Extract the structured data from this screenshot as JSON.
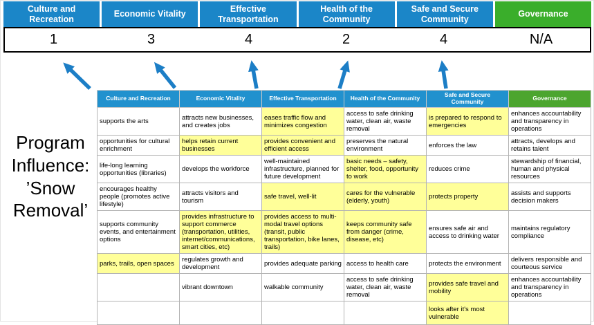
{
  "title": "Program Influence: ’Snow Removal’",
  "colors": {
    "banner_blue": "#1b86c8",
    "banner_green": "#3aae2b",
    "table_header_blue": "#2191ce",
    "table_header_green": "#4ca52f",
    "highlight_yellow": "#ffff99",
    "arrow_blue": "#1c7ec6",
    "score_border": "#000000"
  },
  "scoreboard": {
    "columns": [
      {
        "label": "Culture and Recreation",
        "score": "1",
        "color": "blue"
      },
      {
        "label": "Economic Vitality",
        "score": "3",
        "color": "blue"
      },
      {
        "label": "Effective Transportation",
        "score": "4",
        "color": "blue"
      },
      {
        "label": "Health of the Community",
        "score": "2",
        "color": "blue"
      },
      {
        "label": "Safe and Secure Community",
        "score": "4",
        "color": "blue"
      },
      {
        "label": "Governance",
        "score": "N/A",
        "color": "green"
      }
    ]
  },
  "matrix": {
    "headers": [
      {
        "label": "Culture and Recreation",
        "color": "blue"
      },
      {
        "label": "Economic Vitality",
        "color": "blue"
      },
      {
        "label": "Effective Transportation",
        "color": "blue"
      },
      {
        "label": "Health of the Community",
        "color": "blue"
      },
      {
        "label": "Safe and Secure Community",
        "color": "blue"
      },
      {
        "label": "Governance",
        "color": "green"
      }
    ],
    "rows": [
      [
        {
          "text": "supports the arts",
          "highlight": false
        },
        {
          "text": "attracts new businesses, and creates jobs",
          "highlight": false
        },
        {
          "text": "eases traffic flow and minimizes congestion",
          "highlight": true
        },
        {
          "text": "access to safe drinking water, clean air, waste removal",
          "highlight": false
        },
        {
          "text": "is prepared to respond to emergencies",
          "highlight": true
        },
        {
          "text": "enhances accountability and transparency in operations",
          "highlight": false
        }
      ],
      [
        {
          "text": "opportunities for cultural enrichment",
          "highlight": false
        },
        {
          "text": "helps retain current businesses",
          "highlight": true
        },
        {
          "text": "provides convenient and efficient access",
          "highlight": true
        },
        {
          "text": "preserves the natural environment",
          "highlight": false
        },
        {
          "text": "enforces the law",
          "highlight": false
        },
        {
          "text": "attracts, develops and retains talent",
          "highlight": false
        }
      ],
      [
        {
          "text": "life-long learning opportunities (libraries)",
          "highlight": false
        },
        {
          "text": "develops the workforce",
          "highlight": false
        },
        {
          "text": "well-maintained infrastructure, planned for future development",
          "highlight": false
        },
        {
          "text": "basic needs – safety, shelter, food, opportunity to work",
          "highlight": true
        },
        {
          "text": "reduces crime",
          "highlight": false
        },
        {
          "text": "stewardship of financial, human and physical resources",
          "highlight": false
        }
      ],
      [
        {
          "text": "encourages healthy people (promotes active lifestyle)",
          "highlight": false
        },
        {
          "text": "attracts visitors and tourism",
          "highlight": false
        },
        {
          "text": "safe travel, well-lit",
          "highlight": true
        },
        {
          "text": "cares for the vulnerable (elderly, youth)",
          "highlight": true
        },
        {
          "text": "protects property",
          "highlight": true
        },
        {
          "text": "assists and supports decision makers",
          "highlight": false
        }
      ],
      [
        {
          "text": "supports community events, and entertainment options",
          "highlight": false
        },
        {
          "text": "provides infrastructure to support commerce (transportation, utilities, internet/communications, smart cities, etc)",
          "highlight": true
        },
        {
          "text": "provides access to multi-modal travel options (transit, public transportation, bike lanes, trails)",
          "highlight": true
        },
        {
          "text": "keeps community safe from danger (crime, disease, etc)",
          "highlight": true
        },
        {
          "text": "ensures safe air and access to drinking water",
          "highlight": false
        },
        {
          "text": "maintains regulatory compliance",
          "highlight": false
        }
      ],
      [
        {
          "text": "parks, trails, open spaces",
          "highlight": true
        },
        {
          "text": "regulates growth and development",
          "highlight": false
        },
        {
          "text": "provides adequate parking",
          "highlight": false
        },
        {
          "text": "access to health care",
          "highlight": false
        },
        {
          "text": "protects the environment",
          "highlight": false
        },
        {
          "text": "delivers responsible and courteous service",
          "highlight": false
        }
      ],
      [
        {
          "text": "",
          "highlight": false
        },
        {
          "text": "vibrant downtown",
          "highlight": false
        },
        {
          "text": "walkable community",
          "highlight": false
        },
        {
          "text": "access to safe drinking water, clean air, waste removal",
          "highlight": false
        },
        {
          "text": "provides safe travel and mobility",
          "highlight": true
        },
        {
          "text": "enhances accountability and transparency in operations",
          "highlight": false
        }
      ],
      [
        {
          "text": "",
          "highlight": false
        },
        {
          "text": "",
          "highlight": false
        },
        {
          "text": "",
          "highlight": false
        },
        {
          "text": "",
          "highlight": false
        },
        {
          "text": "looks after it's most vulnerable",
          "highlight": true
        },
        {
          "text": "",
          "highlight": false
        }
      ]
    ]
  }
}
